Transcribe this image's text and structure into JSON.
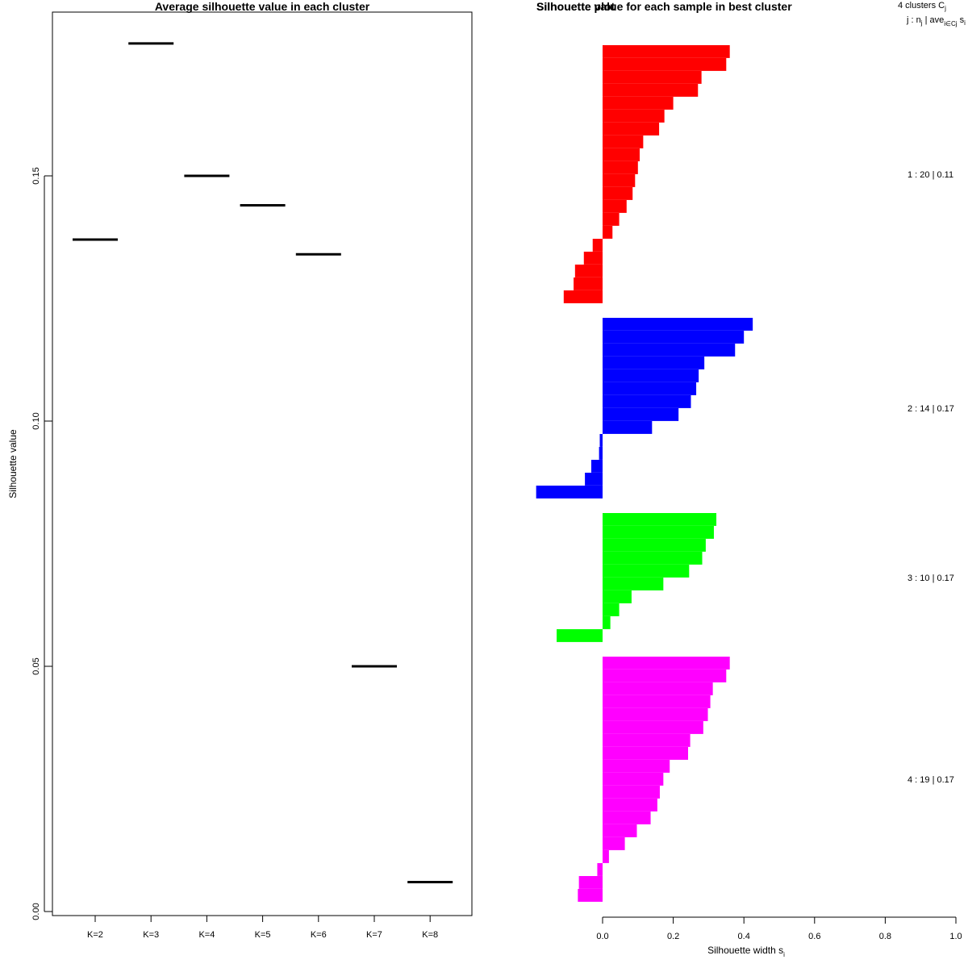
{
  "chart_data": [
    {
      "type": "scatter",
      "title": "Average silhouette value in each cluster",
      "xlabel": "",
      "ylabel": "Silhouette value",
      "categories": [
        "K=2",
        "K=3",
        "K=4",
        "K=5",
        "K=6",
        "K=7",
        "K=8"
      ],
      "values": [
        0.137,
        0.177,
        0.15,
        0.144,
        0.134,
        0.05,
        0.006
      ],
      "ylim": [
        0.0,
        0.183
      ],
      "yticks": [
        "0.00",
        "0.05",
        "0.10",
        "0.15"
      ],
      "marker": "horizontal-segment"
    },
    {
      "type": "bar",
      "orientation": "horizontal",
      "title": "Silhouette value for each sample in best cluster",
      "title_overlap_text": "Silhouette plot",
      "xlabel": "Silhouette width s",
      "xlabel_subscript": "i",
      "xlim": [
        0.0,
        1.0
      ],
      "xticks": [
        "0.0",
        "0.2",
        "0.4",
        "0.6",
        "0.8",
        "1.0"
      ],
      "header_line1": "4  clusters  C",
      "header_line1_sub": "j",
      "header_line2_prefix": "j :  n",
      "header_line2_sub1": "j",
      "header_line2_mid": " | ave",
      "header_line2_sub2": "i∈Cj",
      "header_line2_suffix": "  s",
      "header_line2_suffix_sub": "i",
      "clusters": [
        {
          "label": "1 :  20  |  0.11",
          "color": "#ff0000",
          "values": [
            0.36,
            0.35,
            0.28,
            0.27,
            0.2,
            0.175,
            0.16,
            0.115,
            0.105,
            0.1,
            0.092,
            0.085,
            0.068,
            0.047,
            0.028,
            -0.028,
            -0.053,
            -0.078,
            -0.082,
            -0.11
          ]
        },
        {
          "label": "2 :  14  |  0.17",
          "color": "#0000ff",
          "values": [
            0.425,
            0.4,
            0.375,
            0.288,
            0.272,
            0.265,
            0.25,
            0.215,
            0.14,
            -0.008,
            -0.01,
            -0.032,
            -0.05,
            -0.188
          ]
        },
        {
          "label": "3 :  10  |  0.17",
          "color": "#00ff00",
          "values": [
            0.322,
            0.315,
            0.292,
            0.282,
            0.245,
            0.172,
            0.082,
            0.047,
            0.022,
            -0.13
          ]
        },
        {
          "label": "4 :  19  |  0.17",
          "color": "#ff00ff",
          "values": [
            0.36,
            0.35,
            0.312,
            0.305,
            0.298,
            0.285,
            0.248,
            0.242,
            0.19,
            0.172,
            0.162,
            0.155,
            0.136,
            0.097,
            0.063,
            0.018,
            -0.015,
            -0.067,
            -0.07
          ]
        }
      ]
    }
  ]
}
